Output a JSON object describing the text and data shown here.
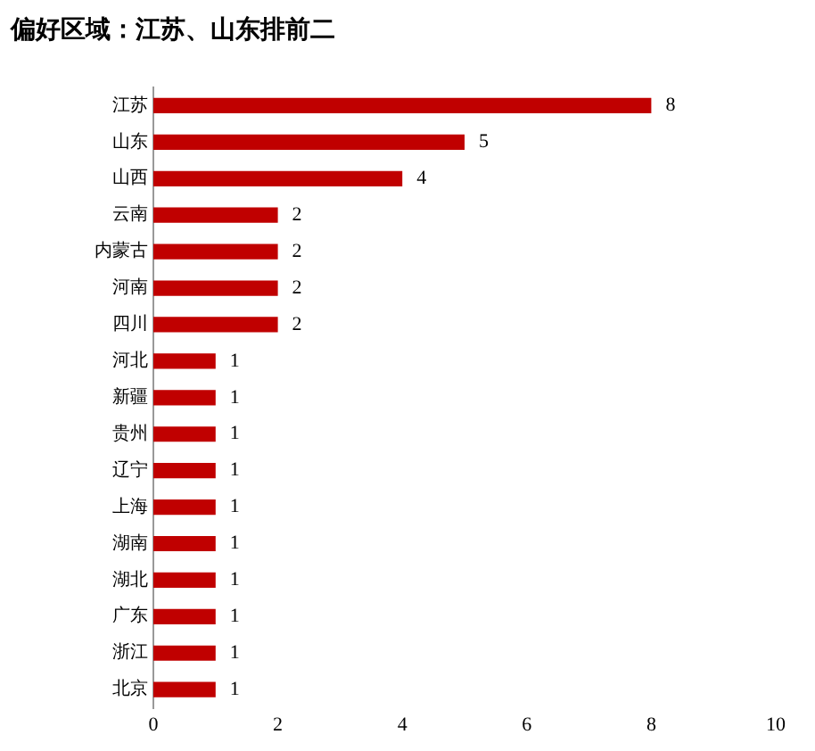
{
  "chart_data": {
    "type": "bar",
    "title": "偏好区域：江苏、山东排前二",
    "orientation": "horizontal",
    "categories": [
      "江苏",
      "山东",
      "山西",
      "云南",
      "内蒙古",
      "河南",
      "四川",
      "河北",
      "新疆",
      "贵州",
      "辽宁",
      "上海",
      "湖南",
      "湖北",
      "广东",
      "浙江",
      "北京"
    ],
    "values": [
      8,
      5,
      4,
      2,
      2,
      2,
      2,
      1,
      1,
      1,
      1,
      1,
      1,
      1,
      1,
      1,
      1
    ],
    "color": "#c00000",
    "xlim": [
      0,
      10
    ],
    "xticks": [
      0,
      2,
      4,
      6,
      8,
      10
    ],
    "grid": false,
    "legend": false,
    "data_labels": true
  }
}
